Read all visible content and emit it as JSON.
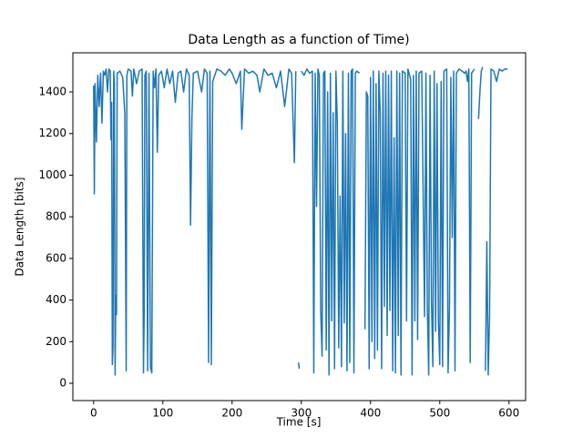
{
  "chart_data": {
    "type": "line",
    "title": "Data Length as a function of Time)",
    "x_label": "Time [s]",
    "y_label": "Data Length [bits]",
    "xlim": [
      -30,
      624
    ],
    "ylim": [
      -83,
      1588
    ],
    "xticks": [
      0,
      100,
      200,
      300,
      400,
      500,
      600
    ],
    "yticks": [
      0,
      200,
      400,
      600,
      800,
      1000,
      1200,
      1400
    ],
    "grid": false,
    "series": [
      {
        "color": "#1f77b4",
        "x": [
          0,
          1,
          2,
          4,
          6,
          8,
          10,
          12,
          14,
          16,
          18,
          20,
          22,
          24,
          25,
          26,
          27,
          28,
          29,
          30,
          31,
          32,
          33,
          34,
          38,
          42,
          45,
          47,
          48,
          50,
          54,
          56,
          58,
          62,
          66,
          70,
          72,
          73,
          74,
          76,
          78,
          80,
          82,
          84,
          86,
          88,
          90,
          92,
          94,
          98,
          102,
          106,
          110,
          114,
          118,
          122,
          126,
          130,
          134,
          138,
          140,
          142,
          144,
          150,
          156,
          160,
          164,
          166,
          168,
          170,
          172,
          178,
          184,
          190,
          196,
          200,
          206,
          212,
          214,
          218,
          224,
          230,
          236,
          240,
          246,
          252,
          258,
          264,
          270,
          276,
          282,
          286,
          290,
          292,
          294,
          296,
          297,
          298,
          300,
          304,
          308,
          312,
          316,
          318,
          320,
          322,
          324,
          326,
          328,
          330,
          332,
          334,
          336,
          338,
          340,
          342,
          344,
          346,
          348,
          350,
          352,
          354,
          356,
          358,
          360,
          362,
          364,
          366,
          368,
          370,
          372,
          374,
          376,
          378,
          380,
          384,
          388,
          392,
          394,
          396,
          398,
          400,
          402,
          404,
          406,
          408,
          410,
          412,
          414,
          416,
          418,
          420,
          422,
          424,
          426,
          428,
          430,
          432,
          434,
          436,
          438,
          440,
          442,
          444,
          446,
          450,
          452,
          454,
          458,
          460,
          462,
          464,
          466,
          468,
          470,
          474,
          478,
          480,
          482,
          484,
          486,
          488,
          490,
          492,
          494,
          496,
          498,
          500,
          502,
          504,
          506,
          510,
          512,
          514,
          516,
          518,
          520,
          522,
          524,
          528,
          532,
          536,
          538,
          540,
          542,
          544,
          546,
          548,
          550,
          552,
          556,
          558,
          560,
          562,
          564,
          566,
          568,
          570,
          572,
          574,
          578,
          582,
          586,
          590,
          594,
          598
        ],
        "values": [
          1430,
          910,
          1440,
          1160,
          1480,
          1330,
          1490,
          1250,
          1500,
          1480,
          1510,
          1400,
          1510,
          1500,
          1170,
          1350,
          90,
          170,
          1500,
          1440,
          40,
          420,
          330,
          1490,
          1500,
          1470,
          1300,
          60,
          1480,
          1510,
          1500,
          1380,
          1510,
          1440,
          1500,
          1510,
          50,
          330,
          1480,
          1500,
          60,
          1490,
          80,
          50,
          1500,
          1420,
          1510,
          1110,
          1480,
          1500,
          1420,
          1510,
          1440,
          1500,
          1350,
          1490,
          1500,
          1400,
          1510,
          1480,
          760,
          1280,
          1490,
          1500,
          1400,
          1510,
          1490,
          100,
          1500,
          90,
          1450,
          1510,
          1500,
          1480,
          1510,
          1490,
          1440,
          1500,
          1220,
          1510,
          1490,
          1500,
          1480,
          1400,
          1510,
          1480,
          1490,
          1420,
          1500,
          1330,
          1510,
          1490,
          1060,
          1500,
          null,
          100,
          70,
          null,
          1500,
          1480,
          1510,
          1490,
          1500,
          50,
          1490,
          850,
          1510,
          1480,
          350,
          130,
          1490,
          1500,
          160,
          1400,
          40,
          1490,
          300,
          1300,
          70,
          1500,
          1250,
          170,
          900,
          80,
          1500,
          290,
          1200,
          60,
          1490,
          100,
          1500,
          1510,
          50,
          1490,
          1500,
          1490,
          null,
          260,
          1400,
          1380,
          70,
          1470,
          200,
          1500,
          120,
          1440,
          160,
          1500,
          1300,
          70,
          1490,
          370,
          1500,
          230,
          1480,
          350,
          1500,
          60,
          1180,
          50,
          1500,
          230,
          1490,
          40,
          1500,
          1490,
          300,
          1510,
          1460,
          40,
          1480,
          300,
          1500,
          210,
          1490,
          1500,
          320,
          1490,
          370,
          40,
          1480,
          400,
          80,
          1500,
          250,
          1440,
          300,
          90,
          1450,
          80,
          1500,
          1510,
          50,
          360,
          1470,
          700,
          1500,
          60,
          1490,
          1510,
          1500,
          1490,
          1500,
          1450,
          1510,
          100,
          1490,
          1500,
          1510,
          null,
          1270,
          1400,
          1500,
          1520,
          null,
          60,
          680,
          40,
          340,
          1510,
          1500,
          1450,
          1510,
          1500,
          1510,
          1510
        ]
      }
    ]
  }
}
